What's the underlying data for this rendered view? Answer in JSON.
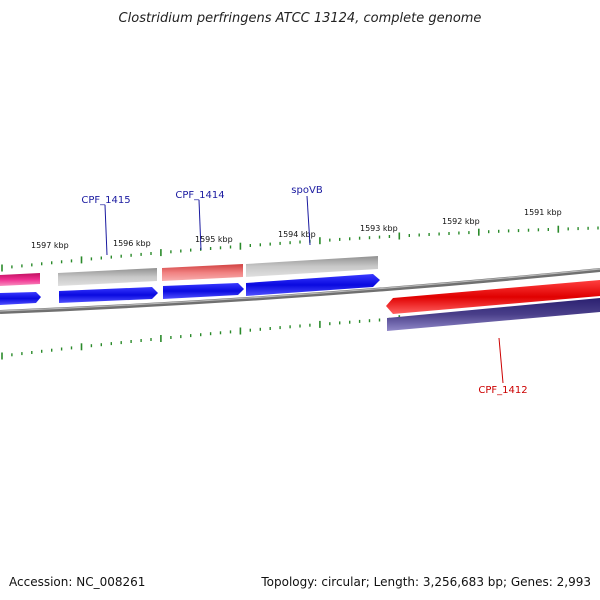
{
  "title": "Clostridium perfringens ATCC 13124, complete genome",
  "footer": {
    "accession": "Accession: NC_008261",
    "topology": "Topology: circular; Length: 3,256,683 bp; Genes: 2,993"
  },
  "kbp_labels": [
    "1597 kbp",
    "1596 kbp",
    "1595 kbp",
    "1594 kbp",
    "1593 kbp",
    "1592 kbp",
    "1591 kbp"
  ],
  "gene_labels": {
    "cpf_1415": "CPF_1415",
    "cpf_1414": "CPF_1414",
    "spovb": "spoVB",
    "cpf_1412": "CPF_1412"
  },
  "colors": {
    "tick": "#2a8a2a",
    "backbone": "#8a8a8a",
    "blue_cds": "#1010e0",
    "red_cds": "#e01010",
    "pink": "#e0307a",
    "gray_feature": "#b0b0b0",
    "salmon_feature": "#e87070",
    "purple": "#4a3f8a",
    "label_blue": "#1a1aa0",
    "label_red": "#cc0000"
  }
}
